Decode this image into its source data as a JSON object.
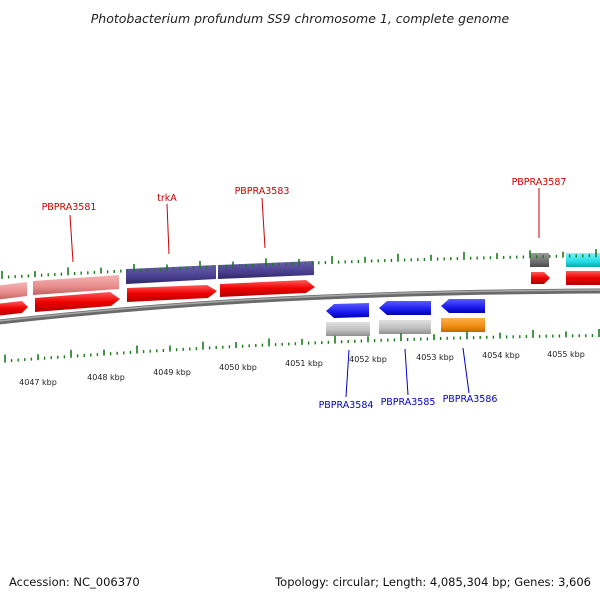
{
  "title": "Photobacterium profundum SS9 chromosome 1, complete genome",
  "footer": {
    "accession": "Accession: NC_006370",
    "topology": "Topology: circular; Length: 4,085,304 bp; Genes: 3,606"
  },
  "axis_labels": [
    "4047 kbp",
    "4048 kbp",
    "4049 kbp",
    "4050 kbp",
    "4051 kbp",
    "4052 kbp",
    "4053 kbp",
    "4054 kbp",
    "4055 kbp"
  ],
  "gene_labels_forward": [
    "PBPRA3581",
    "trkA",
    "PBPRA3583",
    "PBPRA3587"
  ],
  "gene_labels_reverse": [
    "PBPRA3584",
    "PBPRA3585",
    "PBPRA3586"
  ],
  "colors": {
    "forward_label": "#cc0000",
    "reverse_label": "#0000cc",
    "tick": "#1a7a1a",
    "backbone": "#808080",
    "cds_red": "#ee0000",
    "gene_pink": "#e88a8a",
    "gene_purple": "#4a3f8f",
    "gene_blue": "#1a1aee",
    "gene_grey": "#bdbdbd",
    "gene_orange": "#f08c10",
    "gene_cyan": "#22dde8",
    "gene_dark": "#707070"
  }
}
